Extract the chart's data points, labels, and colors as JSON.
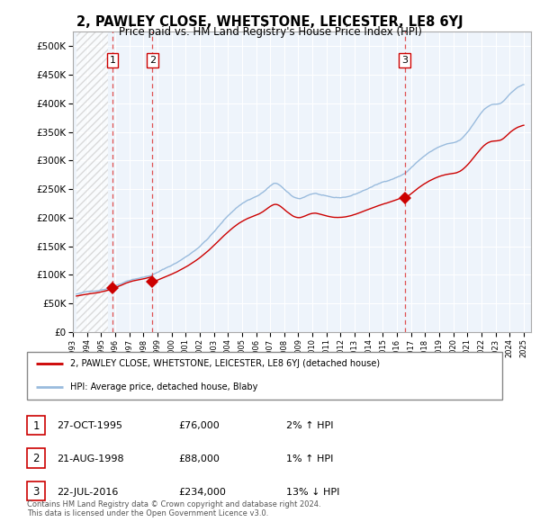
{
  "title": "2, PAWLEY CLOSE, WHETSTONE, LEICESTER, LE8 6YJ",
  "subtitle": "Price paid vs. HM Land Registry's House Price Index (HPI)",
  "ylabel_ticks": [
    "£0",
    "£50K",
    "£100K",
    "£150K",
    "£200K",
    "£250K",
    "£300K",
    "£350K",
    "£400K",
    "£450K",
    "£500K"
  ],
  "ytick_values": [
    0,
    50000,
    100000,
    150000,
    200000,
    250000,
    300000,
    350000,
    400000,
    450000,
    500000
  ],
  "ylim": [
    0,
    525000
  ],
  "xlim_start": 1993.25,
  "xlim_end": 2025.5,
  "sales": [
    {
      "date_num": 1995.82,
      "price": 76000,
      "label": "1"
    },
    {
      "date_num": 1998.64,
      "price": 88000,
      "label": "2"
    },
    {
      "date_num": 2016.55,
      "price": 234000,
      "label": "3"
    }
  ],
  "sale_color": "#cc0000",
  "hpi_color": "#99bbdd",
  "hpi_line_color": "#88aacc",
  "dashed_line_color": "#dd3333",
  "background_color": "#ffffff",
  "plot_bg_color": "#eef4fb",
  "legend_label_red": "2, PAWLEY CLOSE, WHETSTONE, LEICESTER, LE8 6YJ (detached house)",
  "legend_label_blue": "HPI: Average price, detached house, Blaby",
  "table_rows": [
    {
      "num": "1",
      "date": "27-OCT-1995",
      "price": "£76,000",
      "change": "2% ↑ HPI"
    },
    {
      "num": "2",
      "date": "21-AUG-1998",
      "price": "£88,000",
      "change": "1% ↑ HPI"
    },
    {
      "num": "3",
      "date": "22-JUL-2016",
      "price": "£234,000",
      "change": "13% ↓ HPI"
    }
  ],
  "footer": "Contains HM Land Registry data © Crown copyright and database right 2024.\nThis data is licensed under the Open Government Licence v3.0.",
  "xtick_years": [
    1993,
    1994,
    1995,
    1996,
    1997,
    1998,
    1999,
    2000,
    2001,
    2002,
    2003,
    2004,
    2005,
    2006,
    2007,
    2008,
    2009,
    2010,
    2011,
    2012,
    2013,
    2014,
    2015,
    2016,
    2017,
    2018,
    2019,
    2020,
    2021,
    2022,
    2023,
    2024,
    2025
  ]
}
